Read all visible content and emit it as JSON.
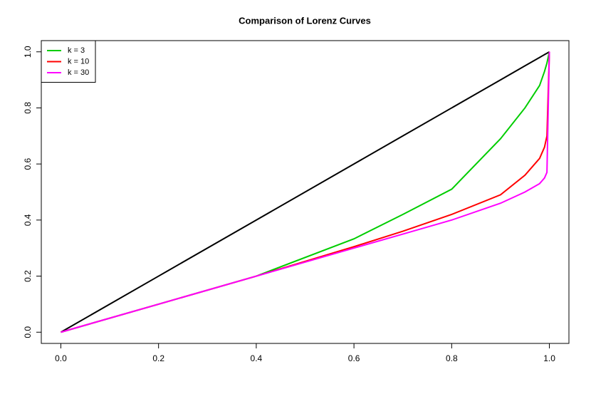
{
  "chart_data": {
    "type": "line",
    "title": "Comparison of Lorenz Curves",
    "x": [
      0,
      0.2,
      0.4,
      0.6,
      0.7,
      0.8,
      0.9,
      0.95,
      0.98,
      0.99,
      0.995,
      1
    ],
    "series": [
      {
        "color": "#000000",
        "values": [
          0,
          0.2,
          0.4,
          0.6,
          0.7,
          0.8,
          0.9,
          0.95,
          0.98,
          0.99,
          0.995,
          1
        ]
      },
      {
        "name": "k = 3",
        "color": "#00cd00",
        "values": [
          0,
          0.1,
          0.2,
          0.333,
          0.42,
          0.51,
          0.69,
          0.8,
          0.88,
          0.93,
          0.96,
          1
        ]
      },
      {
        "name": "k = 10",
        "color": "#ff0000",
        "values": [
          0,
          0.1,
          0.2,
          0.305,
          0.36,
          0.42,
          0.49,
          0.56,
          0.62,
          0.66,
          0.7,
          1
        ]
      },
      {
        "name": "k = 30",
        "color": "#ff00ff",
        "values": [
          0,
          0.1,
          0.2,
          0.3,
          0.35,
          0.4,
          0.46,
          0.5,
          0.53,
          0.55,
          0.57,
          1
        ]
      }
    ],
    "xlim": [
      -0.04,
      1.04
    ],
    "ylim": [
      -0.04,
      1.04
    ],
    "xticks": [
      {
        "value": 0,
        "label": "0.0"
      },
      0.2,
      0.4,
      0.6,
      0.8,
      {
        "value": 1,
        "label": "1.0"
      }
    ],
    "yticks": [
      {
        "value": 0,
        "label": "0.0"
      },
      0.2,
      0.4,
      0.6,
      0.8,
      {
        "value": 1,
        "label": "1.0"
      }
    ],
    "legend": "top-left"
  }
}
